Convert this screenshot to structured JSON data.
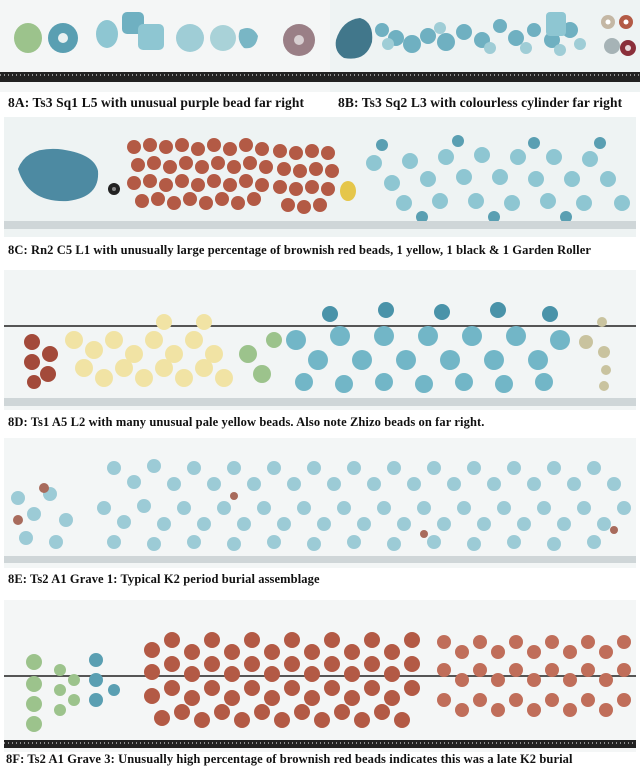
{
  "figure": {
    "panels": [
      {
        "id": "8A",
        "caption": "8A: Ts3 Sq1 L5 with unusual purple bead far right"
      },
      {
        "id": "8B",
        "caption": "8B: Ts3 Sq2 L3 with colourless cylinder far right"
      },
      {
        "id": "8C",
        "caption": "8C: Rn2 C5 L1 with unusually large percentage of brownish red beads, 1 yellow, 1 black & 1 Garden Roller"
      },
      {
        "id": "8D",
        "caption": "8D: Ts1 A5 L2 with many unusual pale yellow beads.  Also note Zhizo beads on far right."
      },
      {
        "id": "8E",
        "caption": "8E: Ts2 A1 Grave 1: Typical K2 period burial assemblage"
      },
      {
        "id": "8F",
        "caption": "8F: Ts2 A1 Grave 3:  Unusually high percentage of brownish red beads indicates this was a late K2 burial"
      }
    ],
    "colors": {
      "glass_blue": "#8ec6d2",
      "glass_blue_dark": "#5a9fb2",
      "glass_green": "#9cc38c",
      "brownish_red": "#b35a45",
      "pale_yellow": "#f1e3a4",
      "purple": "#9a7f86",
      "ruler_black": "#222222"
    }
  }
}
